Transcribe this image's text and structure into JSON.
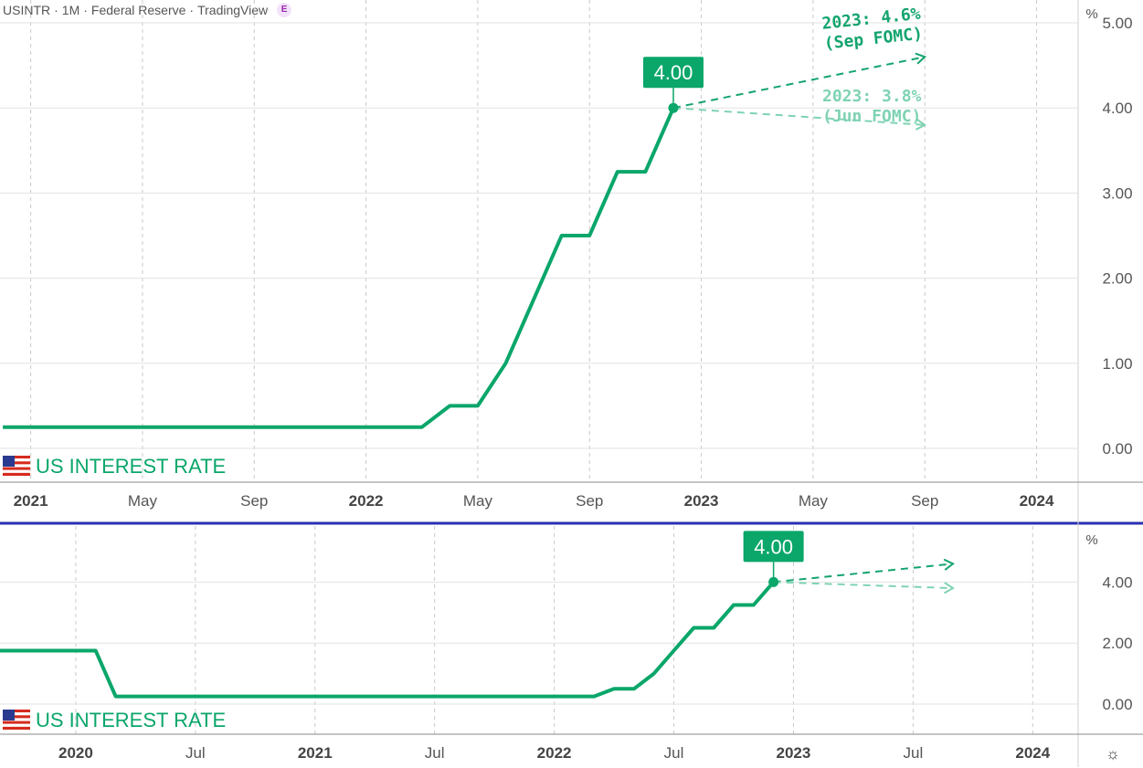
{
  "header": {
    "symbol": "USINTR",
    "interval": "1M",
    "source": "Federal Reserve",
    "platform": "TradingView",
    "badge": "E",
    "sep": "·"
  },
  "colors": {
    "line": "#0aa66a",
    "label_bg": "#0aa66a",
    "projection_sep": "#14a46e",
    "projection_jun": "#7fd3b3",
    "grid": "#e3e3e3",
    "divider": "#2a2fb0",
    "axis_text": "#555555"
  },
  "icons": {
    "flag": "us-flag-icon",
    "settings": "gear-icon"
  },
  "settings_glyph": "☼",
  "chart_data": [
    {
      "type": "line",
      "panel": "top",
      "title": "US INTEREST RATE",
      "unit": "%",
      "x_ticks": [
        "2021",
        "May",
        "Sep",
        "2022",
        "May",
        "Sep",
        "2023",
        "May",
        "Sep",
        "2024"
      ],
      "y_ticks": [
        "0.00",
        "1.00",
        "2.00",
        "3.00",
        "4.00",
        "5.00"
      ],
      "ylim": [
        -0.3,
        5.0
      ],
      "grid": true,
      "series": [
        {
          "points": [
            [
              "2020-12",
              0.25
            ],
            [
              "2022-03",
              0.25
            ],
            [
              "2022-04",
              0.5
            ],
            [
              "2022-05",
              0.5
            ],
            [
              "2022-06",
              1.0
            ],
            [
              "2022-07",
              1.75
            ],
            [
              "2022-08",
              2.5
            ],
            [
              "2022-09",
              2.5
            ],
            [
              "2022-10",
              3.25
            ],
            [
              "2022-11",
              3.25
            ],
            [
              "2022-12",
              4.0
            ]
          ]
        }
      ],
      "last_value_label": "4.00",
      "projections": [
        {
          "label_line1": "2023: 4.6%",
          "label_line2": "(Sep FOMC)",
          "from": [
            "2022-12",
            4.0
          ],
          "to": [
            "2023-09",
            4.6
          ]
        },
        {
          "label_line1": "2023: 3.8%",
          "label_line2": "(Jun FOMC)",
          "from": [
            "2022-12",
            4.0
          ],
          "to": [
            "2023-09",
            3.8
          ]
        }
      ]
    },
    {
      "type": "line",
      "panel": "bottom",
      "title": "US INTEREST RATE",
      "unit": "%",
      "x_ticks": [
        "2020",
        "Jul",
        "2021",
        "Jul",
        "2022",
        "Jul",
        "2023",
        "Jul",
        "2024"
      ],
      "y_ticks": [
        "0.00",
        "2.00",
        "4.00"
      ],
      "ylim": [
        -0.3,
        4.9
      ],
      "grid": true,
      "series": [
        {
          "points": [
            [
              "2019-09",
              1.75
            ],
            [
              "2020-02",
              1.75
            ],
            [
              "2020-03",
              0.25
            ],
            [
              "2022-03",
              0.25
            ],
            [
              "2022-04",
              0.5
            ],
            [
              "2022-05",
              0.5
            ],
            [
              "2022-06",
              1.0
            ],
            [
              "2022-07",
              1.75
            ],
            [
              "2022-08",
              2.5
            ],
            [
              "2022-09",
              2.5
            ],
            [
              "2022-10",
              3.25
            ],
            [
              "2022-11",
              3.25
            ],
            [
              "2022-12",
              4.0
            ]
          ]
        }
      ],
      "last_value_label": "4.00",
      "projections": [
        {
          "from": [
            "2022-12",
            4.0
          ],
          "to": [
            "2023-09",
            4.6
          ]
        },
        {
          "from": [
            "2022-12",
            4.0
          ],
          "to": [
            "2023-09",
            3.8
          ]
        }
      ]
    }
  ]
}
